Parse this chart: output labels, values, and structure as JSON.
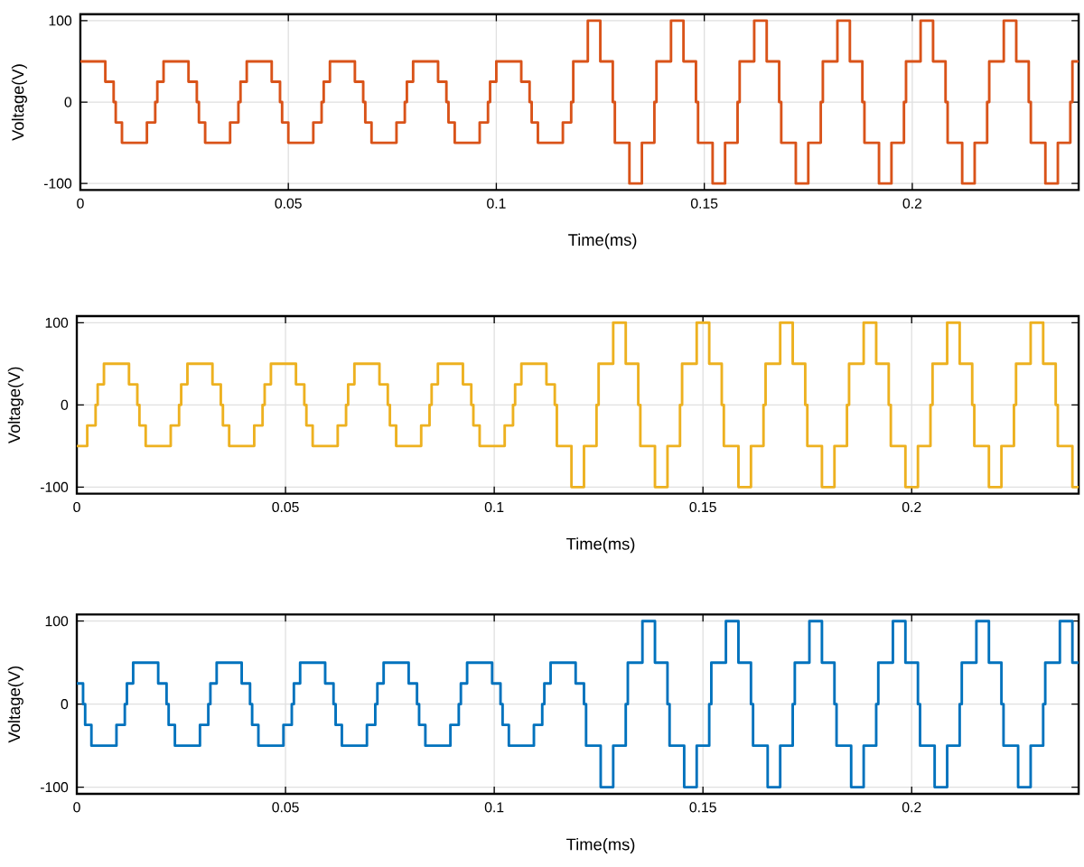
{
  "chart_data": [
    {
      "type": "step",
      "xlabel": "Time(ms)",
      "ylabel": "Voltage(V)",
      "color": "#d95319",
      "grid": true,
      "xlim": [
        0,
        0.24
      ],
      "ylim": [
        -108,
        108
      ],
      "xticks": [
        0,
        0.05,
        0.1,
        0.15,
        0.2
      ],
      "yticks": [
        -100,
        0,
        100
      ],
      "x": [
        0,
        0.006,
        0.008,
        0.0085,
        0.01,
        0.016,
        0.018,
        0.0185,
        0.02,
        0.026,
        0.028,
        0.0285,
        0.03,
        0.036,
        0.038,
        0.0385,
        0.04,
        0.046,
        0.048,
        0.0485,
        0.05,
        0.056,
        0.058,
        0.0585,
        0.06,
        0.066,
        0.068,
        0.0685,
        0.07,
        0.076,
        0.078,
        0.0785,
        0.08,
        0.086,
        0.088,
        0.0885,
        0.09,
        0.096,
        0.098,
        0.0985,
        0.1,
        0.106,
        0.108,
        0.1085,
        0.11,
        0.116,
        0.118,
        0.1185,
        0.122,
        0.125,
        0.128,
        0.1285,
        0.132,
        0.135,
        0.138,
        0.1385,
        0.142,
        0.145,
        0.148,
        0.1485,
        0.152,
        0.155,
        0.158,
        0.1585,
        0.162,
        0.165,
        0.168,
        0.1685,
        0.172,
        0.175,
        0.178,
        0.1785,
        0.182,
        0.185,
        0.188,
        0.1885,
        0.192,
        0.195,
        0.198,
        0.1985,
        0.202,
        0.205,
        0.208,
        0.2085,
        0.212,
        0.215,
        0.218,
        0.2185,
        0.222,
        0.225,
        0.228,
        0.2285,
        0.232,
        0.235,
        0.238,
        0.2385,
        0.24
      ],
      "values": [
        50,
        25,
        0,
        -25,
        -50,
        -25,
        0,
        25,
        50,
        25,
        0,
        -25,
        -50,
        -25,
        0,
        25,
        50,
        25,
        0,
        -25,
        -50,
        -25,
        0,
        25,
        50,
        25,
        0,
        -25,
        -50,
        -25,
        0,
        25,
        50,
        25,
        0,
        -25,
        -50,
        -25,
        0,
        25,
        50,
        25,
        0,
        -25,
        -50,
        -25,
        0,
        50,
        100,
        50,
        0,
        -50,
        -100,
        -50,
        0,
        50,
        100,
        50,
        0,
        -50,
        -100,
        -50,
        0,
        50,
        100,
        50,
        0,
        -50,
        -100,
        -50,
        0,
        50,
        100,
        50,
        0,
        -50,
        -100,
        -50,
        0,
        50,
        100,
        50,
        0,
        -50,
        -100,
        -50,
        0,
        50,
        100,
        50,
        0,
        -50,
        -100,
        -50,
        0,
        50,
        50
      ]
    },
    {
      "type": "step",
      "xlabel": "Time(ms)",
      "ylabel": "Voltage(V)",
      "color": "#edb120",
      "grid": true,
      "xlim": [
        0,
        0.24
      ],
      "ylim": [
        -108,
        108
      ],
      "xticks": [
        0,
        0.05,
        0.1,
        0.15,
        0.2
      ],
      "yticks": [
        -100,
        0,
        100
      ],
      "x": [
        0,
        0.0025,
        0.0045,
        0.005,
        0.0065,
        0.0125,
        0.0145,
        0.015,
        0.0165,
        0.0225,
        0.0245,
        0.025,
        0.0265,
        0.0325,
        0.0345,
        0.035,
        0.0365,
        0.0425,
        0.0445,
        0.045,
        0.0465,
        0.0525,
        0.0545,
        0.055,
        0.0565,
        0.0625,
        0.0645,
        0.065,
        0.0665,
        0.0725,
        0.0745,
        0.075,
        0.0765,
        0.0825,
        0.0845,
        0.085,
        0.0865,
        0.0925,
        0.0945,
        0.095,
        0.0965,
        0.1025,
        0.1045,
        0.105,
        0.1065,
        0.1125,
        0.1145,
        0.115,
        0.1185,
        0.1215,
        0.1245,
        0.125,
        0.1285,
        0.1315,
        0.1345,
        0.135,
        0.1385,
        0.1415,
        0.1445,
        0.145,
        0.1485,
        0.1515,
        0.1545,
        0.155,
        0.1585,
        0.1615,
        0.1645,
        0.165,
        0.1685,
        0.1715,
        0.1745,
        0.175,
        0.1785,
        0.1815,
        0.1845,
        0.185,
        0.1885,
        0.1915,
        0.1945,
        0.195,
        0.1985,
        0.2015,
        0.2045,
        0.205,
        0.2085,
        0.2115,
        0.2145,
        0.215,
        0.2185,
        0.2215,
        0.2245,
        0.225,
        0.2285,
        0.2315,
        0.2345,
        0.235,
        0.2385,
        0.24
      ],
      "values": [
        -50,
        -25,
        0,
        25,
        50,
        25,
        0,
        -25,
        -50,
        -25,
        0,
        25,
        50,
        25,
        0,
        -25,
        -50,
        -25,
        0,
        25,
        50,
        25,
        0,
        -25,
        -50,
        -25,
        0,
        25,
        50,
        25,
        0,
        -25,
        -50,
        -25,
        0,
        25,
        50,
        25,
        0,
        -25,
        -50,
        -25,
        0,
        25,
        50,
        25,
        0,
        -50,
        -100,
        -50,
        0,
        50,
        100,
        50,
        0,
        -50,
        -100,
        -50,
        0,
        50,
        100,
        50,
        0,
        -50,
        -100,
        -50,
        0,
        50,
        100,
        50,
        0,
        -50,
        -100,
        -50,
        0,
        50,
        100,
        50,
        0,
        -50,
        -100,
        -50,
        0,
        50,
        100,
        50,
        0,
        -50,
        -100,
        -50,
        0,
        50,
        100,
        50,
        0,
        -50,
        -100,
        -100
      ]
    },
    {
      "type": "step",
      "xlabel": "Time(ms)",
      "ylabel": "Voltage(V)",
      "color": "#0072bd",
      "grid": true,
      "xlim": [
        0,
        0.24
      ],
      "ylim": [
        -108,
        108
      ],
      "xticks": [
        0,
        0.05,
        0.1,
        0.15,
        0.2
      ],
      "yticks": [
        -100,
        0,
        100
      ],
      "x": [
        0,
        0.0015,
        0.002,
        0.0035,
        0.0095,
        0.0115,
        0.012,
        0.0135,
        0.0195,
        0.0215,
        0.022,
        0.0235,
        0.0295,
        0.0315,
        0.032,
        0.0335,
        0.0395,
        0.0415,
        0.042,
        0.0435,
        0.0495,
        0.0515,
        0.052,
        0.0535,
        0.0595,
        0.0615,
        0.062,
        0.0635,
        0.0695,
        0.0715,
        0.072,
        0.0735,
        0.0795,
        0.0815,
        0.082,
        0.0835,
        0.0895,
        0.0915,
        0.092,
        0.0935,
        0.0995,
        0.1015,
        0.102,
        0.1035,
        0.1095,
        0.1115,
        0.112,
        0.1135,
        0.1195,
        0.1215,
        0.122,
        0.1255,
        0.1285,
        0.1315,
        0.132,
        0.1355,
        0.1385,
        0.1415,
        0.142,
        0.1455,
        0.1485,
        0.1515,
        0.152,
        0.1555,
        0.1585,
        0.1615,
        0.162,
        0.1655,
        0.1685,
        0.1715,
        0.172,
        0.1755,
        0.1785,
        0.1815,
        0.182,
        0.1855,
        0.1885,
        0.1915,
        0.192,
        0.1955,
        0.1985,
        0.2015,
        0.202,
        0.2055,
        0.2085,
        0.2115,
        0.212,
        0.2155,
        0.2185,
        0.2215,
        0.222,
        0.2255,
        0.2285,
        0.2315,
        0.232,
        0.2355,
        0.2385,
        0.24
      ],
      "values": [
        25,
        0,
        -25,
        -50,
        -25,
        0,
        25,
        50,
        25,
        0,
        -25,
        -50,
        -25,
        0,
        25,
        50,
        25,
        0,
        -25,
        -50,
        -25,
        0,
        25,
        50,
        25,
        0,
        -25,
        -50,
        -25,
        0,
        25,
        50,
        25,
        0,
        -25,
        -50,
        -25,
        0,
        25,
        50,
        25,
        0,
        -25,
        -50,
        -25,
        0,
        25,
        50,
        25,
        0,
        -50,
        -100,
        -50,
        0,
        50,
        100,
        50,
        0,
        -50,
        -100,
        -50,
        0,
        50,
        100,
        50,
        0,
        -50,
        -100,
        -50,
        0,
        50,
        100,
        50,
        0,
        -50,
        -100,
        -50,
        0,
        50,
        100,
        50,
        0,
        -50,
        -100,
        -50,
        0,
        50,
        100,
        50,
        0,
        -50,
        -100,
        -50,
        0,
        50,
        100,
        50,
        50
      ]
    }
  ]
}
